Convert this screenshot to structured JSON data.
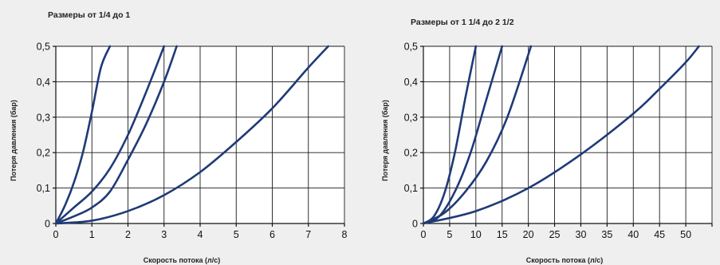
{
  "colors": {
    "background": "#efefef",
    "plot_area": "#ffffff",
    "grid": "#1a1a1a",
    "curve": "#1f3a78"
  },
  "chart_data": [
    {
      "type": "line",
      "title": "Размеры от 1/4 до 1",
      "xlabel": "Скорость потока (л/с)",
      "ylabel": "Потеря давления (бар)",
      "xlim": [
        0,
        8
      ],
      "ylim": [
        0,
        0.5
      ],
      "xticks": [
        0,
        1,
        2,
        3,
        4,
        5,
        6,
        7,
        8
      ],
      "yticks": [
        0,
        0.1,
        0.2,
        0.3,
        0.4,
        0.5
      ],
      "xtick_labels": [
        "0",
        "1",
        "2",
        "3",
        "4",
        "5",
        "6",
        "7",
        "8"
      ],
      "ytick_labels": [
        "0",
        "0,1",
        "0,2",
        "0,3",
        "0,4",
        "0,5"
      ],
      "grid": true,
      "series": [
        {
          "x": [
            0,
            0.25,
            0.5,
            0.75,
            1.0,
            1.25,
            1.5
          ],
          "y": [
            0,
            0.05,
            0.115,
            0.2,
            0.315,
            0.44,
            0.5
          ]
        },
        {
          "x": [
            0,
            0.5,
            1.0,
            1.5,
            2.0,
            2.5,
            3.0
          ],
          "y": [
            0,
            0.045,
            0.09,
            0.155,
            0.25,
            0.37,
            0.5
          ]
        },
        {
          "x": [
            0,
            0.5,
            1.0,
            1.5,
            2.0,
            2.5,
            3.0,
            3.35
          ],
          "y": [
            0,
            0.02,
            0.045,
            0.09,
            0.18,
            0.28,
            0.4,
            0.5
          ]
        },
        {
          "x": [
            0,
            1.0,
            2.0,
            3.0,
            4.0,
            5.0,
            6.0,
            7.0,
            7.55
          ],
          "y": [
            0,
            0.008,
            0.035,
            0.08,
            0.145,
            0.23,
            0.325,
            0.44,
            0.5
          ]
        }
      ]
    },
    {
      "type": "line",
      "title": "Размеры от 1 1/4 до 2 1/2",
      "xlabel": "Скорость потока (л/с)",
      "ylabel": "Потеря давления (бар)",
      "xlim": [
        0,
        55
      ],
      "ylim": [
        0,
        0.5
      ],
      "xticks": [
        0,
        5,
        10,
        15,
        20,
        25,
        30,
        35,
        40,
        45,
        50,
        55
      ],
      "yticks": [
        0,
        0.1,
        0.2,
        0.3,
        0.4,
        0.5
      ],
      "xtick_labels": [
        "0",
        "5",
        "10",
        "15",
        "20",
        "25",
        "30",
        "35",
        "40",
        "45",
        "50",
        ""
      ],
      "ytick_labels": [
        "0",
        "0,1",
        "0,2",
        "0,3",
        "0,4",
        "0,5"
      ],
      "grid": true,
      "series": [
        {
          "x": [
            0,
            2,
            4,
            6,
            8,
            10
          ],
          "y": [
            0,
            0.02,
            0.085,
            0.2,
            0.355,
            0.5
          ]
        },
        {
          "x": [
            0,
            3,
            6,
            9,
            12,
            15
          ],
          "y": [
            0,
            0.02,
            0.09,
            0.2,
            0.35,
            0.5
          ]
        },
        {
          "x": [
            0,
            4,
            8,
            12,
            16,
            20.5
          ],
          "y": [
            0,
            0.03,
            0.09,
            0.175,
            0.3,
            0.5
          ]
        },
        {
          "x": [
            0,
            10,
            20,
            30,
            40,
            45,
            50,
            52.5
          ],
          "y": [
            0,
            0.035,
            0.1,
            0.195,
            0.31,
            0.38,
            0.455,
            0.5
          ]
        }
      ]
    }
  ]
}
